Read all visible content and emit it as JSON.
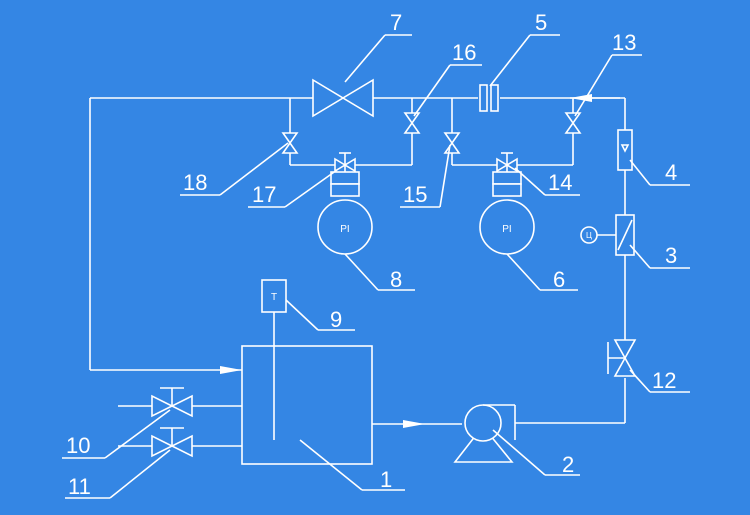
{
  "background_color": "#3486E4",
  "line_color": "#ffffff",
  "labels": {
    "n1": "1",
    "n2": "2",
    "n3": "3",
    "n4": "4",
    "n5": "5",
    "n6": "6",
    "n7": "7",
    "n8": "8",
    "n9": "9",
    "n10": "10",
    "n11": "11",
    "n12": "12",
    "n13": "13",
    "n14": "14",
    "n15": "15",
    "n16": "16",
    "n17": "17",
    "n18": "18"
  },
  "gauge_8_text": "PI",
  "gauge_6_text": "PI",
  "thermometer_text": "T",
  "meter_3_text": "Ц"
}
